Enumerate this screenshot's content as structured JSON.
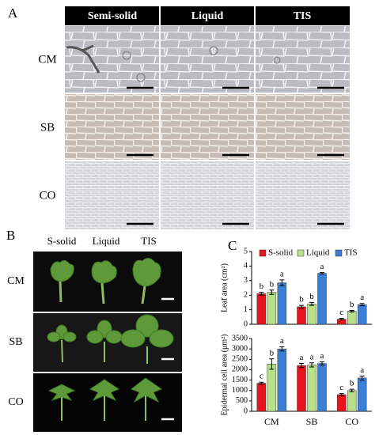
{
  "panel_a": {
    "label": "A",
    "columns": [
      "Semi-solid",
      "Liquid",
      "TIS"
    ],
    "rows": [
      "CM",
      "SB",
      "CO"
    ]
  },
  "panel_b": {
    "label": "B",
    "columns": [
      "S-solid",
      "Liquid",
      "TIS"
    ],
    "rows": [
      "CM",
      "SB",
      "CO"
    ]
  },
  "panel_c": {
    "label": "C"
  },
  "chart_data": [
    {
      "type": "bar",
      "ylabel": "Leaf area (cm²)",
      "categories": [
        null,
        null,
        null
      ],
      "ylim": [
        0,
        5
      ],
      "yticks": [
        0,
        1,
        2,
        3,
        4,
        5
      ],
      "legend": "top",
      "series": [
        {
          "name": "S-solid",
          "color": "#e8141b",
          "values": [
            2.1,
            1.2,
            0.35
          ],
          "errors": [
            0.1,
            0.1,
            0.05
          ],
          "letters": [
            "b",
            "b",
            "c"
          ]
        },
        {
          "name": "Liquid",
          "color": "#b8e08a",
          "values": [
            2.2,
            1.4,
            0.9
          ],
          "errors": [
            0.15,
            0.1,
            0.05
          ],
          "letters": [
            "b",
            "b",
            "b"
          ]
        },
        {
          "name": "TIS",
          "color": "#3a7fd6",
          "values": [
            2.85,
            3.5,
            1.35
          ],
          "errors": [
            0.2,
            0.05,
            0.08
          ],
          "letters": [
            "a",
            "a",
            "a"
          ]
        }
      ]
    },
    {
      "type": "bar",
      "ylabel": "Epidermal cell area (μm²)",
      "categories": [
        "CM",
        "SB",
        "CO"
      ],
      "ylim": [
        0,
        3500
      ],
      "yticks": [
        0,
        500,
        1000,
        1500,
        2000,
        2500,
        3000,
        3500
      ],
      "series": [
        {
          "color": "#e8141b",
          "values": [
            1350,
            2200,
            800
          ],
          "errors": [
            50,
            100,
            50
          ],
          "letters": [
            "c",
            "a",
            "c"
          ]
        },
        {
          "color": "#b8e08a",
          "values": [
            2270,
            2230,
            1000
          ],
          "errors": [
            250,
            100,
            60
          ],
          "letters": [
            "b",
            "a",
            "b"
          ]
        },
        {
          "color": "#3a7fd6",
          "values": [
            3000,
            2300,
            1600
          ],
          "errors": [
            100,
            80,
            100
          ],
          "letters": [
            "a",
            "a",
            "a"
          ]
        }
      ]
    }
  ]
}
